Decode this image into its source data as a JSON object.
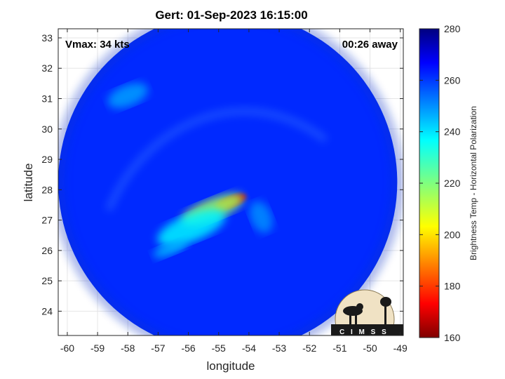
{
  "title": "Gert: 01-Sep-2023 16:15:00",
  "annotations": {
    "vmax": "Vmax: 34 kts",
    "time_away": "00:26 away"
  },
  "logo": {
    "text": "C I M S S"
  },
  "colors": {
    "background_disk_blue": "#1f4fe6",
    "scheme": "jet"
  },
  "chart_data": {
    "type": "heatmap",
    "title": "Gert: 01-Sep-2023 16:15:00",
    "xlabel": "longitude",
    "ylabel": "latitude",
    "xlim": [
      -60.3,
      -48.9
    ],
    "ylim": [
      23.2,
      33.3
    ],
    "xticks": [
      -60,
      -59,
      -58,
      -57,
      -56,
      -55,
      -54,
      -53,
      -52,
      -51,
      -50,
      -49
    ],
    "yticks": [
      24,
      25,
      26,
      27,
      28,
      29,
      30,
      31,
      32,
      33
    ],
    "grid": true,
    "colorbar": {
      "label": "Brightness Temp - Horizontal Polarization",
      "min": 160,
      "max": 280,
      "ticks": [
        160,
        180,
        200,
        220,
        240,
        260,
        280
      ]
    },
    "swath": {
      "center_lon": -54.7,
      "center_lat": 28.25,
      "radius_deg": 5.6
    },
    "background_value": 262,
    "features": [
      {
        "lon": -54.6,
        "lat": 27.6,
        "value": 168,
        "rx": 0.55,
        "ry": 0.18
      },
      {
        "lon": -55.2,
        "lat": 27.35,
        "value": 215,
        "rx": 1.1,
        "ry": 0.35
      },
      {
        "lon": -55.9,
        "lat": 26.75,
        "value": 238,
        "rx": 1.2,
        "ry": 0.45
      },
      {
        "lon": -56.6,
        "lat": 26.05,
        "value": 245,
        "rx": 0.6,
        "ry": 0.2
      },
      {
        "lon": -58.0,
        "lat": 31.1,
        "value": 248,
        "rx": 0.7,
        "ry": 0.35
      },
      {
        "lon": -53.6,
        "lat": 27.1,
        "value": 250,
        "rx": 0.35,
        "ry": 0.55
      }
    ]
  }
}
